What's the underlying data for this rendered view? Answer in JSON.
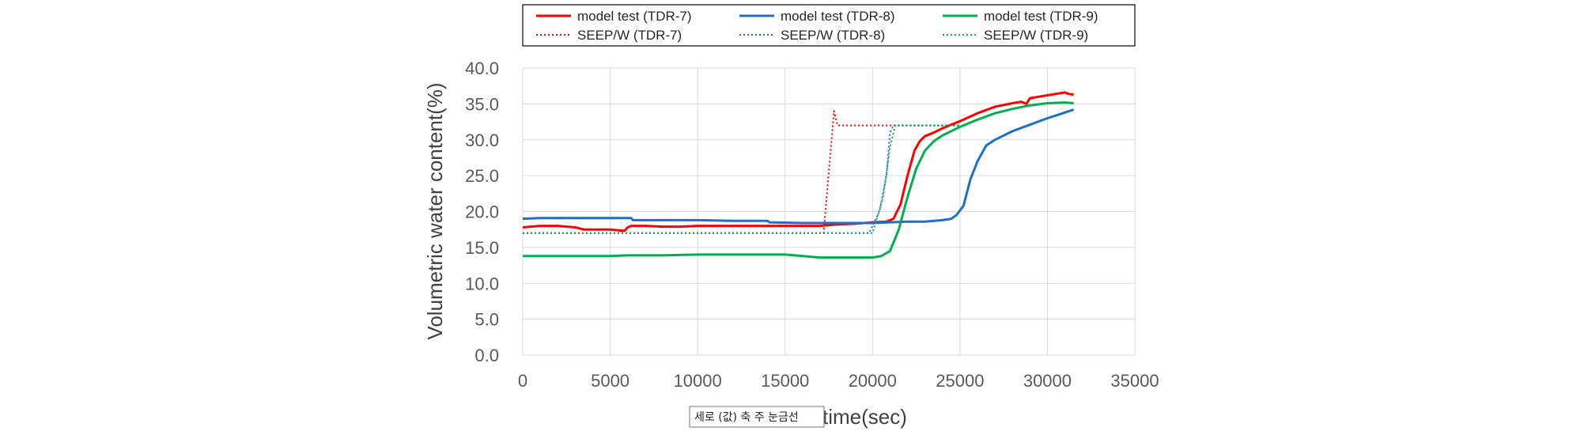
{
  "chart_data": {
    "type": "line",
    "xlabel": "time(sec)",
    "ylabel": "Volumetric water content(%)",
    "xlim": [
      0,
      35000
    ],
    "ylim": [
      0,
      40
    ],
    "xticks": [
      0,
      5000,
      10000,
      15000,
      20000,
      25000,
      30000,
      35000
    ],
    "yticks": [
      0,
      5,
      10,
      15,
      20,
      25,
      30,
      35,
      40
    ],
    "ytick_format": "one-decimal",
    "grid": true,
    "legend_position": "top",
    "series": [
      {
        "name": "model test (TDR-7)",
        "color": "#ff0000",
        "style": "solid",
        "x": [
          0,
          1000,
          2000,
          3000,
          3500,
          4000,
          5000,
          5800,
          6000,
          6200,
          7000,
          8000,
          9000,
          10000,
          11000,
          12000,
          13000,
          14000,
          15000,
          16000,
          17000,
          18000,
          19000,
          20000,
          20800,
          21200,
          21600,
          22000,
          22400,
          22700,
          23000,
          23500,
          24000,
          25000,
          26000,
          27000,
          28000,
          28500,
          28800,
          29000,
          29500,
          30000,
          30500,
          31000,
          31200,
          31500
        ],
        "y": [
          17.8,
          18.0,
          18.0,
          17.8,
          17.5,
          17.5,
          17.5,
          17.3,
          17.8,
          18.0,
          18.0,
          17.9,
          17.9,
          18.0,
          18.0,
          18.0,
          18.0,
          18.0,
          18.0,
          18.0,
          18.0,
          18.2,
          18.3,
          18.5,
          18.6,
          19.0,
          21.0,
          25.0,
          28.5,
          29.8,
          30.5,
          31.0,
          31.6,
          32.6,
          33.7,
          34.6,
          35.1,
          35.3,
          35.0,
          35.8,
          36.0,
          36.2,
          36.4,
          36.6,
          36.4,
          36.3
        ]
      },
      {
        "name": "model test (TDR-8)",
        "color": "#1f6fc5",
        "style": "solid",
        "x": [
          0,
          1000,
          3000,
          5000,
          6200,
          6300,
          8000,
          10000,
          12000,
          14000,
          14100,
          16000,
          18000,
          20000,
          21000,
          22000,
          23000,
          24000,
          24500,
          24800,
          25200,
          25600,
          26000,
          26500,
          27000,
          28000,
          29000,
          30000,
          30500,
          31000,
          31500
        ],
        "y": [
          19.0,
          19.1,
          19.1,
          19.1,
          19.1,
          18.8,
          18.8,
          18.8,
          18.7,
          18.7,
          18.5,
          18.4,
          18.4,
          18.4,
          18.5,
          18.6,
          18.6,
          18.8,
          19.0,
          19.5,
          20.8,
          24.5,
          27.0,
          29.2,
          30.0,
          31.2,
          32.1,
          33.0,
          33.4,
          33.8,
          34.2
        ]
      },
      {
        "name": "model test (TDR-9)",
        "color": "#00b050",
        "style": "solid",
        "x": [
          0,
          1000,
          3000,
          5000,
          6000,
          8000,
          10000,
          12000,
          14000,
          15000,
          16000,
          17000,
          18000,
          19000,
          20000,
          20500,
          21000,
          21500,
          22000,
          22500,
          23000,
          23500,
          24000,
          25000,
          26000,
          27000,
          28000,
          29000,
          30000,
          31000,
          31500
        ],
        "y": [
          13.8,
          13.8,
          13.8,
          13.8,
          13.9,
          13.9,
          14.0,
          14.0,
          14.0,
          14.0,
          13.8,
          13.6,
          13.6,
          13.6,
          13.6,
          13.8,
          14.5,
          17.5,
          22.0,
          26.0,
          28.5,
          29.8,
          30.6,
          31.8,
          32.8,
          33.7,
          34.3,
          34.8,
          35.1,
          35.2,
          35.1
        ]
      },
      {
        "name": "SEEP/W (TDR-7)",
        "color": "#ff0000",
        "style": "dotted",
        "x": [
          0,
          17200,
          17800,
          18000,
          21000,
          24000,
          25000
        ],
        "y": [
          17.0,
          17.0,
          34.0,
          32.0,
          32.0,
          32.0,
          32.0
        ]
      },
      {
        "name": "SEEP/W (TDR-8)",
        "color": "#1f6fc5",
        "style": "dotted",
        "x": [
          0,
          19800,
          20400,
          20800,
          21000,
          21200,
          24000,
          25000
        ],
        "y": [
          17.0,
          17.0,
          20.0,
          25.0,
          31.0,
          32.0,
          32.0,
          32.0
        ]
      },
      {
        "name": "SEEP/W (TDR-9)",
        "color": "#00b050",
        "style": "dotted",
        "x": [
          0,
          20000,
          20600,
          21000,
          21300,
          24000,
          25000
        ],
        "y": [
          17.0,
          17.0,
          22.0,
          29.0,
          32.0,
          32.0,
          32.0
        ]
      }
    ]
  },
  "tooltip": {
    "label": "세로 (값) 축 주 눈금선"
  }
}
